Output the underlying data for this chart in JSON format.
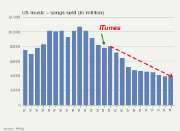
{
  "title": "US music – songs sold (in million)",
  "source": "Source: MPAA",
  "years": [
    "90",
    "91",
    "92",
    "93",
    "94",
    "95",
    "96",
    "97",
    "98",
    "99",
    "00",
    "01",
    "02",
    "03",
    "04",
    "05",
    "06",
    "07",
    "08",
    "09",
    "10",
    "11",
    "12",
    "13",
    "14"
  ],
  "values": [
    7500,
    7000,
    7800,
    8300,
    10100,
    10000,
    10100,
    9300,
    10100,
    10700,
    10100,
    9100,
    8200,
    7800,
    8000,
    7100,
    6400,
    5200,
    4700,
    4600,
    4500,
    4400,
    4100,
    3900,
    3900
  ],
  "bar_color": "#6080b8",
  "ylim": [
    0,
    12000
  ],
  "yticks": [
    0,
    2000,
    4000,
    6000,
    8000,
    10000,
    12000
  ],
  "ytick_labels": [
    "0",
    "2,000",
    "4,000",
    "6,000",
    "8,000",
    "10,000",
    "12,000"
  ],
  "itunes_label": "iTunes",
  "itunes_color": "#dd0000",
  "arrow_color": "#007700",
  "dashed_line_color": "#dd0000",
  "itunes_bar_idx": 14,
  "bg_color": "#f2f2ee"
}
